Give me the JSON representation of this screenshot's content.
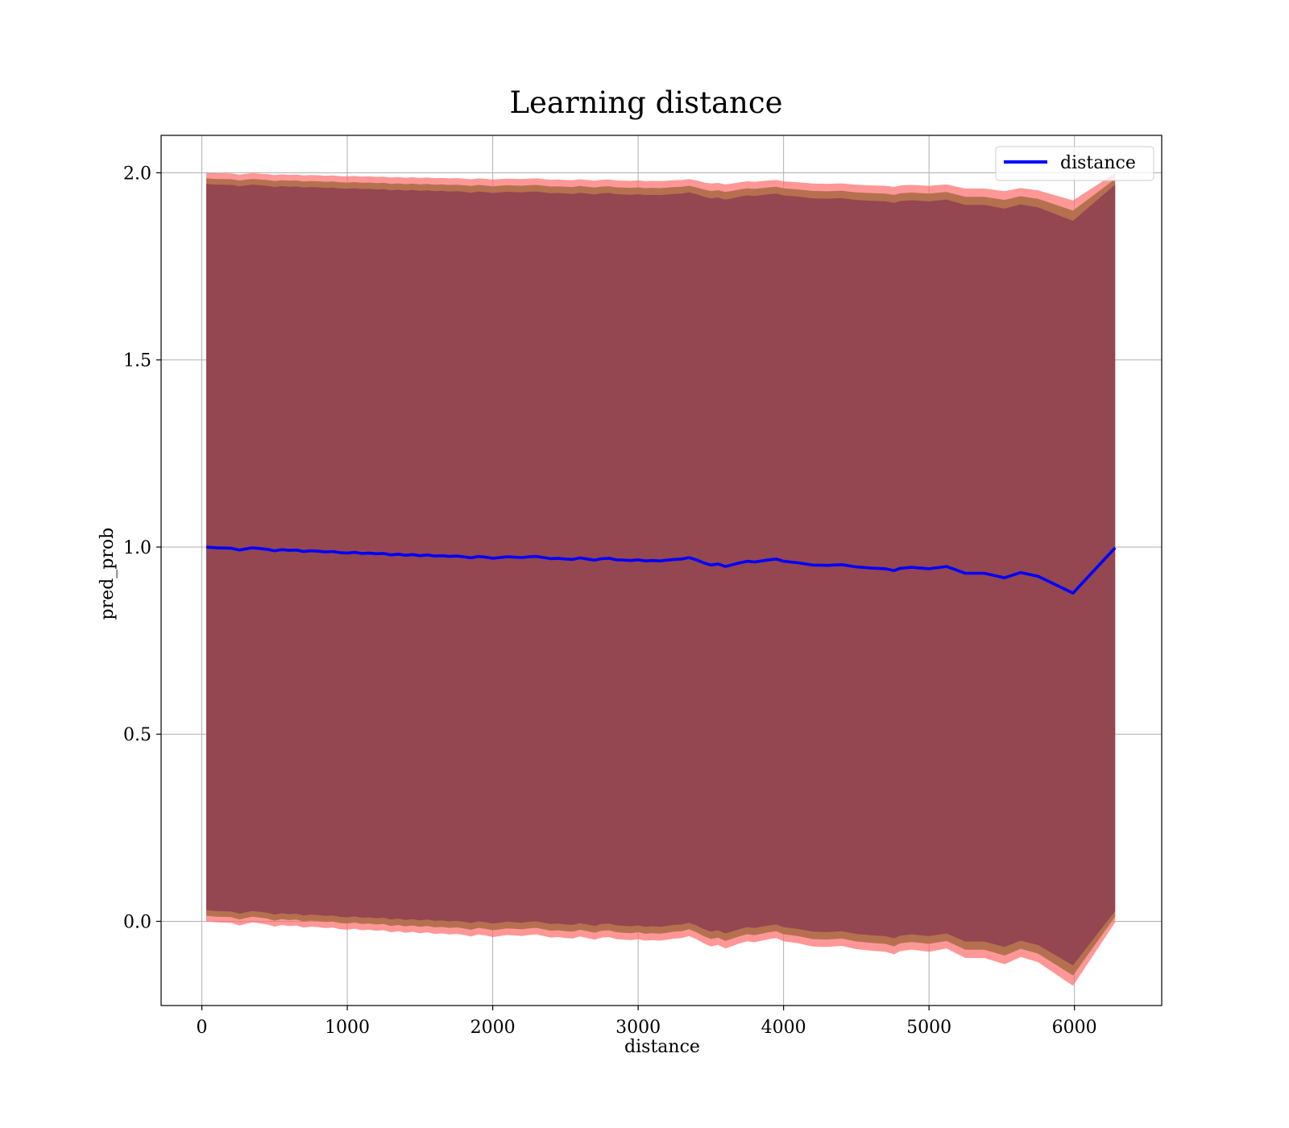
{
  "chart_data": {
    "type": "line",
    "title": "Learning distance",
    "xlabel": "distance",
    "ylabel": "pred_prob",
    "xlim": [
      -280,
      6600
    ],
    "ylim": [
      -0.225,
      2.1
    ],
    "xticks": [
      0,
      1000,
      2000,
      3000,
      4000,
      5000,
      6000
    ],
    "yticks": [
      0.0,
      0.5,
      1.0,
      1.5,
      2.0
    ],
    "xtick_labels": [
      "0",
      "1000",
      "2000",
      "3000",
      "4000",
      "5000",
      "6000"
    ],
    "ytick_labels": [
      "0.0",
      "0.5",
      "1.0",
      "1.5",
      "2.0"
    ],
    "grid": true,
    "legend": {
      "position": "top-right",
      "entries": [
        "distance"
      ]
    },
    "colors": {
      "line": "#0000ff",
      "inner_band": "#8b3a52",
      "middle_band": "#b5714f",
      "outer_band": "#ff6b6b",
      "grid": "#b0b0b0"
    },
    "series": [
      {
        "name": "distance",
        "x": [
          30,
          100,
          200,
          260,
          300,
          350,
          400,
          450,
          500,
          550,
          600,
          650,
          700,
          750,
          800,
          850,
          900,
          950,
          1000,
          1050,
          1100,
          1150,
          1200,
          1250,
          1300,
          1350,
          1400,
          1450,
          1500,
          1550,
          1600,
          1650,
          1700,
          1750,
          1800,
          1850,
          1900,
          1950,
          2000,
          2050,
          2100,
          2150,
          2200,
          2250,
          2300,
          2350,
          2400,
          2450,
          2500,
          2550,
          2600,
          2650,
          2700,
          2750,
          2800,
          2850,
          2900,
          2950,
          3000,
          3050,
          3100,
          3150,
          3200,
          3250,
          3300,
          3350,
          3400,
          3450,
          3500,
          3550,
          3600,
          3650,
          3700,
          3750,
          3800,
          3850,
          3900,
          3950,
          4000,
          4100,
          4200,
          4300,
          4400,
          4500,
          4600,
          4700,
          4760,
          4800,
          4880,
          5000,
          5120,
          5250,
          5380,
          5520,
          5630,
          5750,
          5990,
          6280
        ],
        "values": [
          1.0,
          0.998,
          0.997,
          0.992,
          0.995,
          0.998,
          0.996,
          0.994,
          0.99,
          0.993,
          0.991,
          0.992,
          0.988,
          0.99,
          0.989,
          0.987,
          0.988,
          0.985,
          0.984,
          0.986,
          0.983,
          0.984,
          0.982,
          0.983,
          0.979,
          0.981,
          0.978,
          0.98,
          0.977,
          0.979,
          0.976,
          0.977,
          0.975,
          0.976,
          0.974,
          0.971,
          0.975,
          0.973,
          0.97,
          0.972,
          0.974,
          0.973,
          0.972,
          0.974,
          0.975,
          0.972,
          0.969,
          0.97,
          0.968,
          0.967,
          0.971,
          0.968,
          0.965,
          0.969,
          0.97,
          0.966,
          0.965,
          0.964,
          0.966,
          0.963,
          0.964,
          0.963,
          0.965,
          0.967,
          0.968,
          0.972,
          0.966,
          0.958,
          0.952,
          0.955,
          0.948,
          0.953,
          0.958,
          0.962,
          0.96,
          0.963,
          0.966,
          0.968,
          0.962,
          0.958,
          0.952,
          0.951,
          0.953,
          0.947,
          0.944,
          0.942,
          0.937,
          0.943,
          0.946,
          0.942,
          0.948,
          0.93,
          0.93,
          0.918,
          0.932,
          0.922,
          0.877,
          0.998
        ]
      }
    ],
    "bands": {
      "inner_half_width": 0.97,
      "middle_half_width": 0.985,
      "outer_half_width": 1.0,
      "extra_spread_per_unit_drop": 0.2
    }
  }
}
